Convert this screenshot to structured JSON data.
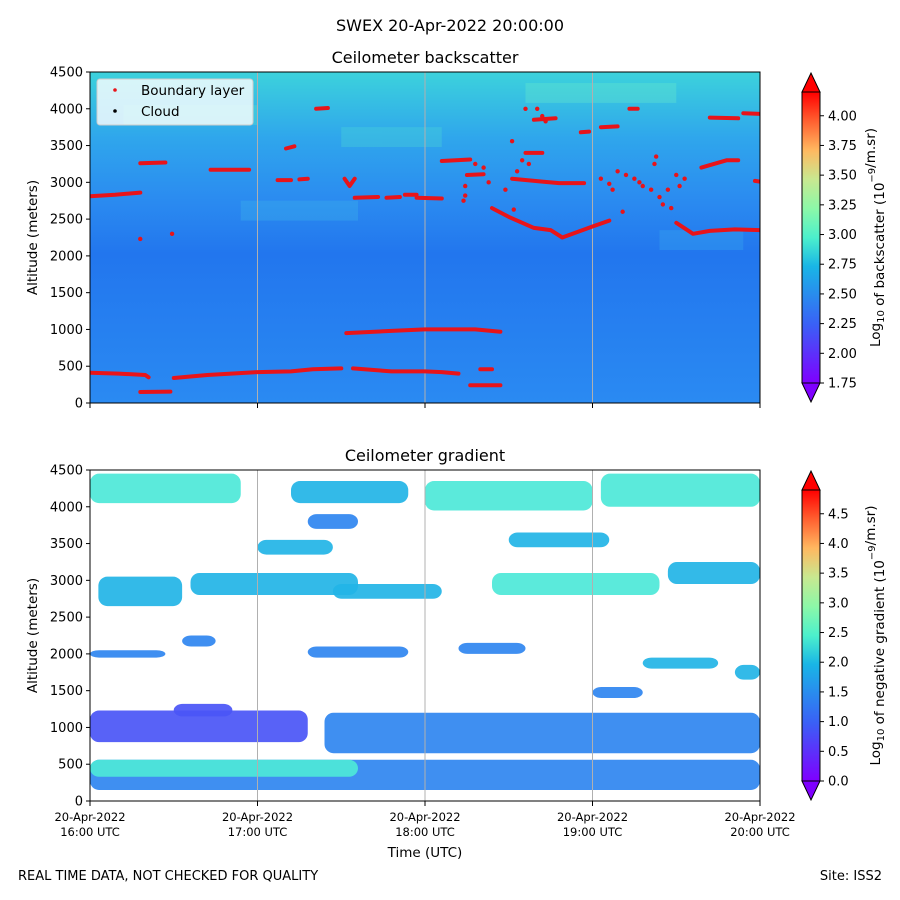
{
  "figure": {
    "suptitle": "SWEX 20-Apr-2022 20:00:00",
    "footer_left": "REAL TIME DATA, NOT CHECKED FOR QUALITY",
    "footer_right": "Site: ISS2"
  },
  "colors": {
    "background_low": "#1f7bf0",
    "background_mid": "#2a9ef0",
    "background_high": "#38cde0",
    "boundary_layer": "#e8141a",
    "cloud": "#000000",
    "grid": "#b0b0b0",
    "gradient_cyan": "#4de8d8",
    "gradient_green": "#8af0b0",
    "gradient_blue": "#2f86f0",
    "gradient_violet": "#7a28f0"
  },
  "chart_data": [
    {
      "type": "heatmap",
      "title": "Ceilometer backscatter",
      "xlabel": "",
      "ylabel": "Altitude (meters)",
      "ylim": [
        0,
        4500
      ],
      "yticks": [
        0,
        500,
        1000,
        1500,
        2000,
        2500,
        3000,
        3500,
        4000,
        4500
      ],
      "xlim": [
        0,
        4
      ],
      "x_units": "hours since 20-Apr-2022 16:00 UTC",
      "colorbar": {
        "label_prefix": "Log",
        "label_sub": "10",
        "label_mid": " of backscatter (10",
        "label_sup": "−9",
        "label_suffix": "/m.sr)",
        "ticks": [
          "1.75",
          "2.00",
          "2.25",
          "2.50",
          "2.75",
          "3.00",
          "3.25",
          "3.50",
          "3.75",
          "4.00"
        ],
        "range": [
          1.75,
          4.2
        ]
      },
      "legend": {
        "location": "top-left",
        "entries": [
          {
            "label": "Boundary layer",
            "color": "#e8141a"
          },
          {
            "label": "Cloud",
            "color": "#000000"
          }
        ]
      },
      "series": [
        {
          "name": "Boundary layer",
          "segments": [
            [
              [
                0.0,
                410
              ],
              [
                0.17,
                400
              ],
              [
                0.33,
                380
              ],
              [
                0.35,
                350
              ]
            ],
            [
              [
                0.3,
                150
              ],
              [
                0.48,
                155
              ]
            ],
            [
              [
                0.5,
                340
              ],
              [
                0.7,
                380
              ],
              [
                1.0,
                420
              ],
              [
                1.2,
                430
              ],
              [
                1.33,
                460
              ],
              [
                1.5,
                470
              ]
            ],
            [
              [
                1.57,
                470
              ],
              [
                1.8,
                430
              ],
              [
                2.0,
                430
              ],
              [
                2.1,
                420
              ],
              [
                2.2,
                400
              ]
            ],
            [
              [
                2.33,
                460
              ],
              [
                2.4,
                460
              ]
            ],
            [
              [
                2.27,
                240
              ],
              [
                2.45,
                240
              ]
            ],
            [
              [
                1.53,
                950
              ],
              [
                1.8,
                980
              ],
              [
                2.0,
                1000
              ],
              [
                2.3,
                1000
              ],
              [
                2.45,
                970
              ]
            ],
            [
              [
                0.0,
                2810
              ],
              [
                0.15,
                2830
              ],
              [
                0.3,
                2860
              ]
            ],
            [
              [
                0.3,
                3260
              ],
              [
                0.45,
                3270
              ]
            ],
            [
              [
                0.72,
                3170
              ],
              [
                0.95,
                3170
              ]
            ],
            [
              [
                1.12,
                3030
              ],
              [
                1.2,
                3030
              ]
            ],
            [
              [
                1.25,
                3040
              ],
              [
                1.3,
                3050
              ]
            ],
            [
              [
                1.17,
                3460
              ],
              [
                1.22,
                3490
              ]
            ],
            [
              [
                1.35,
                4000
              ],
              [
                1.42,
                4010
              ]
            ],
            [
              [
                1.52,
                3050
              ],
              [
                1.55,
                2950
              ],
              [
                1.58,
                3050
              ]
            ],
            [
              [
                1.58,
                2790
              ],
              [
                1.72,
                2800
              ]
            ],
            [
              [
                1.77,
                2790
              ],
              [
                1.85,
                2800
              ]
            ],
            [
              [
                1.88,
                2830
              ],
              [
                1.95,
                2830
              ]
            ],
            [
              [
                1.95,
                2790
              ],
              [
                2.1,
                2780
              ]
            ],
            [
              [
                2.1,
                3290
              ],
              [
                2.27,
                3310
              ]
            ],
            [
              [
                2.25,
                3100
              ],
              [
                2.35,
                3110
              ]
            ],
            [
              [
                2.4,
                2650
              ],
              [
                2.5,
                2530
              ],
              [
                2.65,
                2380
              ],
              [
                2.75,
                2350
              ],
              [
                2.82,
                2250
              ],
              [
                3.0,
                2400
              ],
              [
                3.1,
                2480
              ]
            ],
            [
              [
                2.52,
                3050
              ],
              [
                2.7,
                3010
              ],
              [
                2.8,
                2990
              ],
              [
                2.95,
                2990
              ]
            ],
            [
              [
                2.6,
                3400
              ],
              [
                2.7,
                3400
              ]
            ],
            [
              [
                2.65,
                3850
              ],
              [
                2.78,
                3870
              ]
            ],
            [
              [
                2.93,
                3680
              ],
              [
                2.98,
                3690
              ]
            ],
            [
              [
                3.05,
                3750
              ],
              [
                3.15,
                3760
              ]
            ],
            [
              [
                3.22,
                4000
              ],
              [
                3.27,
                4000
              ]
            ],
            [
              [
                3.5,
                2450
              ],
              [
                3.6,
                2300
              ],
              [
                3.7,
                2340
              ],
              [
                3.85,
                2360
              ],
              [
                4.0,
                2350
              ]
            ],
            [
              [
                3.65,
                3200
              ],
              [
                3.8,
                3300
              ],
              [
                3.87,
                3300
              ]
            ],
            [
              [
                3.7,
                3880
              ],
              [
                3.87,
                3870
              ]
            ],
            [
              [
                3.9,
                3940
              ],
              [
                4.0,
                3930
              ]
            ],
            [
              [
                3.97,
                3020
              ],
              [
                4.0,
                3010
              ]
            ]
          ]
        },
        {
          "name": "Boundary layer points",
          "points": [
            [
              0.3,
              2230
            ],
            [
              0.49,
              2300
            ],
            [
              2.24,
              2950
            ],
            [
              2.24,
              2820
            ],
            [
              2.23,
              2750
            ],
            [
              2.35,
              3200
            ],
            [
              2.38,
              3000
            ],
            [
              2.3,
              3250
            ],
            [
              2.48,
              2900
            ],
            [
              2.52,
              3560
            ],
            [
              2.55,
              3150
            ],
            [
              2.58,
              3300
            ],
            [
              2.62,
              3250
            ],
            [
              2.53,
              2630
            ],
            [
              2.6,
              4000
            ],
            [
              2.67,
              4000
            ],
            [
              2.7,
              3900
            ],
            [
              2.72,
              3830
            ],
            [
              3.05,
              3050
            ],
            [
              3.1,
              2980
            ],
            [
              3.15,
              3150
            ],
            [
              3.12,
              2900
            ],
            [
              3.2,
              3100
            ],
            [
              3.25,
              3050
            ],
            [
              3.18,
              2600
            ],
            [
              3.3,
              2950
            ],
            [
              3.28,
              3000
            ],
            [
              3.35,
              2900
            ],
            [
              3.38,
              3350
            ],
            [
              3.37,
              3250
            ],
            [
              3.42,
              2700
            ],
            [
              3.4,
              2800
            ],
            [
              3.45,
              2900
            ],
            [
              3.47,
              2650
            ],
            [
              3.52,
              2950
            ],
            [
              3.5,
              3100
            ],
            [
              3.55,
              3050
            ]
          ]
        },
        {
          "name": "Cloud",
          "points": []
        }
      ]
    },
    {
      "type": "heatmap",
      "title": "Ceilometer gradient",
      "xlabel": "Time (UTC)",
      "ylabel": "Altitude (meters)",
      "ylim": [
        0,
        4500
      ],
      "yticks": [
        0,
        500,
        1000,
        1500,
        2000,
        2500,
        3000,
        3500,
        4000,
        4500
      ],
      "xlim": [
        0,
        4
      ],
      "xticks": [
        {
          "value": 0,
          "date": "20-Apr-2022",
          "time": "16:00 UTC"
        },
        {
          "value": 1,
          "date": "20-Apr-2022",
          "time": "17:00 UTC"
        },
        {
          "value": 2,
          "date": "20-Apr-2022",
          "time": "18:00 UTC"
        },
        {
          "value": 3,
          "date": "20-Apr-2022",
          "time": "19:00 UTC"
        },
        {
          "value": 4,
          "date": "20-Apr-2022",
          "time": "20:00 UTC"
        }
      ],
      "colorbar": {
        "label_prefix": "Log",
        "label_sub": "10",
        "label_mid": " of negative gradient (10",
        "label_sup": "−9",
        "label_suffix": "/m.sr)",
        "ticks": [
          "0.0",
          "0.5",
          "1.0",
          "1.5",
          "2.0",
          "2.5",
          "3.0",
          "3.5",
          "4.0",
          "4.5"
        ],
        "range": [
          0,
          4.9
        ]
      },
      "bands": [
        {
          "x0": 0.0,
          "x1": 4.0,
          "y0": 150,
          "y1": 560,
          "level": 1.3
        },
        {
          "x0": 0.0,
          "x1": 1.6,
          "y0": 330,
          "y1": 560,
          "level": 1.9
        },
        {
          "x0": 0.0,
          "x1": 1.3,
          "y0": 800,
          "y1": 1230,
          "level": 0.9
        },
        {
          "x0": 0.5,
          "x1": 0.85,
          "y0": 1150,
          "y1": 1320,
          "level": 0.6
        },
        {
          "x0": 1.4,
          "x1": 4.0,
          "y0": 650,
          "y1": 1200,
          "level": 1.1
        },
        {
          "x0": 0.05,
          "x1": 0.55,
          "y0": 2650,
          "y1": 3050,
          "level": 1.8
        },
        {
          "x0": 0.6,
          "x1": 1.6,
          "y0": 2800,
          "y1": 3100,
          "level": 1.6
        },
        {
          "x0": 1.45,
          "x1": 2.1,
          "y0": 2750,
          "y1": 2950,
          "level": 1.7
        },
        {
          "x0": 2.4,
          "x1": 3.4,
          "y0": 2800,
          "y1": 3100,
          "level": 1.9
        },
        {
          "x0": 3.45,
          "x1": 4.0,
          "y0": 2950,
          "y1": 3250,
          "level": 1.8
        },
        {
          "x0": 1.0,
          "x1": 1.45,
          "y0": 3350,
          "y1": 3550,
          "level": 1.5
        },
        {
          "x0": 2.5,
          "x1": 3.1,
          "y0": 3450,
          "y1": 3650,
          "level": 1.6
        },
        {
          "x0": 0.0,
          "x1": 0.9,
          "y0": 4050,
          "y1": 4450,
          "level": 2.0
        },
        {
          "x0": 1.2,
          "x1": 1.9,
          "y0": 4050,
          "y1": 4350,
          "level": 1.8
        },
        {
          "x0": 2.0,
          "x1": 3.0,
          "y0": 3950,
          "y1": 4350,
          "level": 2.2
        },
        {
          "x0": 3.05,
          "x1": 4.0,
          "y0": 4000,
          "y1": 4450,
          "level": 2.1
        },
        {
          "x0": 0.0,
          "x1": 0.45,
          "y0": 1950,
          "y1": 2050,
          "level": 1.0
        },
        {
          "x0": 0.55,
          "x1": 0.75,
          "y0": 2100,
          "y1": 2250,
          "level": 1.2
        },
        {
          "x0": 1.3,
          "x1": 1.9,
          "y0": 1950,
          "y1": 2100,
          "level": 1.2
        },
        {
          "x0": 2.2,
          "x1": 2.6,
          "y0": 2000,
          "y1": 2150,
          "level": 1.0
        },
        {
          "x0": 3.3,
          "x1": 3.75,
          "y0": 1800,
          "y1": 1950,
          "level": 1.5
        },
        {
          "x0": 3.85,
          "x1": 4.0,
          "y0": 1650,
          "y1": 1850,
          "level": 1.6
        },
        {
          "x0": 3.0,
          "x1": 3.3,
          "y0": 1400,
          "y1": 1550,
          "level": 1.0
        },
        {
          "x0": 1.3,
          "x1": 1.6,
          "y0": 3700,
          "y1": 3900,
          "level": 1.4
        }
      ]
    }
  ]
}
